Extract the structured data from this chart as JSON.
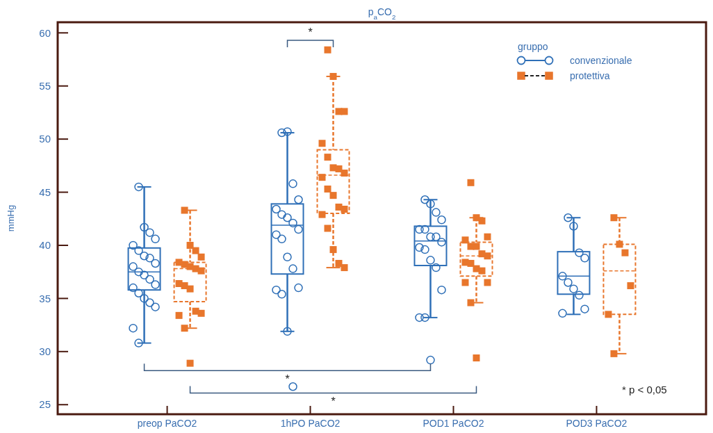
{
  "chart_data": {
    "type": "box",
    "title": "p$_{a}$CO$_{2}$",
    "ylabel": "mmHg",
    "legend_title": "gruppo",
    "legend": "top right",
    "categories": [
      "preop PaCO2",
      "1hPO PaCO2",
      "POD1 PaCO2",
      "POD3 PaCO2"
    ],
    "ylim": [
      24.1,
      61
    ],
    "yticks": [
      25,
      30,
      35,
      40,
      45,
      50,
      55,
      60
    ],
    "annotations": [
      "*",
      "*",
      "*",
      "* p < 0,05"
    ],
    "series": [
      {
        "name": "convenzionale",
        "color": "#2e6fb7",
        "marker": "circle",
        "line_style": "solid",
        "boxes": [
          {
            "low": 30.8,
            "q1": 35.8,
            "median": 37.5,
            "q3": 39.75,
            "high": 45.5
          },
          {
            "low": 31.9,
            "q1": 37.3,
            "median": 41.9,
            "q3": 43.9,
            "high": 50.6
          },
          {
            "low": 33.2,
            "q1": 38.1,
            "median": 40.4,
            "q3": 41.8,
            "high": 44.3
          },
          {
            "low": 33.5,
            "q1": 35.4,
            "median": 37.1,
            "q3": 39.4,
            "high": 42.6
          }
        ]
      },
      {
        "name": "protettiva",
        "color": "#e8762c",
        "marker": "square",
        "line_style": "dashed",
        "boxes": [
          {
            "low": 32.2,
            "q1": 34.7,
            "median": 37.8,
            "q3": 38.4,
            "high": 43.3
          },
          {
            "low": 37.9,
            "q1": 43.0,
            "median": 46.6,
            "q3": 49.0,
            "high": 55.9
          },
          {
            "low": 34.6,
            "q1": 37.1,
            "median": 39.0,
            "q3": 40.3,
            "high": 42.6
          },
          {
            "low": 29.8,
            "q1": 33.5,
            "median": 37.6,
            "q3": 40.1,
            "high": 42.6
          }
        ]
      },
      {
        "type": "scatter",
        "color": "#2e6fb7",
        "marker": "circle",
        "x": [
          "preop PaCO2",
          "preop PaCO2",
          "preop PaCO2",
          "preop PaCO2",
          "preop PaCO2",
          "preop PaCO2",
          "preop PaCO2",
          "preop PaCO2",
          "preop PaCO2",
          "preop PaCO2",
          "preop PaCO2",
          "preop PaCO2",
          "preop PaCO2",
          "preop PaCO2",
          "preop PaCO2",
          "preop PaCO2",
          "preop PaCO2",
          "preop PaCO2",
          "preop PaCO2",
          "preop PaCO2",
          "preop PaCO2",
          "1hPO PaCO2",
          "1hPO PaCO2",
          "1hPO PaCO2",
          "1hPO PaCO2",
          "1hPO PaCO2",
          "1hPO PaCO2",
          "1hPO PaCO2",
          "1hPO PaCO2",
          "1hPO PaCO2",
          "1hPO PaCO2",
          "1hPO PaCO2",
          "1hPO PaCO2",
          "1hPO PaCO2",
          "1hPO PaCO2",
          "1hPO PaCO2",
          "1hPO PaCO2",
          "1hPO PaCO2",
          "1hPO PaCO2",
          "POD1 PaCO2",
          "POD1 PaCO2",
          "POD1 PaCO2",
          "POD1 PaCO2",
          "POD1 PaCO2",
          "POD1 PaCO2",
          "POD1 PaCO2",
          "POD1 PaCO2",
          "POD1 PaCO2",
          "POD1 PaCO2",
          "POD1 PaCO2",
          "POD1 PaCO2",
          "POD1 PaCO2",
          "POD1 PaCO2",
          "POD1 PaCO2",
          "POD1 PaCO2",
          "POD1 PaCO2",
          "POD3 PaCO2",
          "POD3 PaCO2",
          "POD3 PaCO2",
          "POD3 PaCO2",
          "POD3 PaCO2",
          "POD3 PaCO2",
          "POD3 PaCO2",
          "POD3 PaCO2",
          "POD3 PaCO2",
          "POD3 PaCO2"
        ],
        "values": [
          45.5,
          41.7,
          41.2,
          40.6,
          40.0,
          39.5,
          39.0,
          38.8,
          38.3,
          38.0,
          37.5,
          37.2,
          36.8,
          36.3,
          36.0,
          35.5,
          35.0,
          34.6,
          34.2,
          32.2,
          30.8,
          50.6,
          50.7,
          45.8,
          44.3,
          43.4,
          42.9,
          42.6,
          42.1,
          41.5,
          41.0,
          40.6,
          38.9,
          37.8,
          36.0,
          35.8,
          35.4,
          31.9,
          26.7,
          44.3,
          43.9,
          43.1,
          42.4,
          41.5,
          41.5,
          40.8,
          40.8,
          40.3,
          39.8,
          39.6,
          38.6,
          37.9,
          35.8,
          33.2,
          33.2,
          29.2,
          42.6,
          41.8,
          39.3,
          38.8,
          37.1,
          36.5,
          35.9,
          35.3,
          34.0,
          33.6
        ]
      },
      {
        "type": "scatter",
        "color": "#e8762c",
        "marker": "square",
        "x": [
          "preop PaCO2",
          "preop PaCO2",
          "preop PaCO2",
          "preop PaCO2",
          "preop PaCO2",
          "preop PaCO2",
          "preop PaCO2",
          "preop PaCO2",
          "preop PaCO2",
          "preop PaCO2",
          "preop PaCO2",
          "preop PaCO2",
          "preop PaCO2",
          "preop PaCO2",
          "preop PaCO2",
          "preop PaCO2",
          "preop PaCO2",
          "1hPO PaCO2",
          "1hPO PaCO2",
          "1hPO PaCO2",
          "1hPO PaCO2",
          "1hPO PaCO2",
          "1hPO PaCO2",
          "1hPO PaCO2",
          "1hPO PaCO2",
          "1hPO PaCO2",
          "1hPO PaCO2",
          "1hPO PaCO2",
          "1hPO PaCO2",
          "1hPO PaCO2",
          "1hPO PaCO2",
          "1hPO PaCO2",
          "1hPO PaCO2",
          "1hPO PaCO2",
          "1hPO PaCO2",
          "1hPO PaCO2",
          "POD1 PaCO2",
          "POD1 PaCO2",
          "POD1 PaCO2",
          "POD1 PaCO2",
          "POD1 PaCO2",
          "POD1 PaCO2",
          "POD1 PaCO2",
          "POD1 PaCO2",
          "POD1 PaCO2",
          "POD1 PaCO2",
          "POD1 PaCO2",
          "POD1 PaCO2",
          "POD1 PaCO2",
          "POD1 PaCO2",
          "POD1 PaCO2",
          "POD1 PaCO2",
          "POD1 PaCO2",
          "POD3 PaCO2",
          "POD3 PaCO2",
          "POD3 PaCO2",
          "POD3 PaCO2",
          "POD3 PaCO2",
          "POD3 PaCO2"
        ],
        "values": [
          43.3,
          40.0,
          39.5,
          38.9,
          38.4,
          38.2,
          38.0,
          37.8,
          37.6,
          36.4,
          36.2,
          35.9,
          33.8,
          33.6,
          33.4,
          32.2,
          28.9,
          58.4,
          55.9,
          52.6,
          52.6,
          49.6,
          48.3,
          47.3,
          47.2,
          46.8,
          46.4,
          45.3,
          44.7,
          43.6,
          43.4,
          42.9,
          41.6,
          39.6,
          38.3,
          37.9,
          45.9,
          42.6,
          42.3,
          40.8,
          40.5,
          39.9,
          39.9,
          39.2,
          39.0,
          38.4,
          38.3,
          37.8,
          37.6,
          36.5,
          36.5,
          34.6,
          29.4,
          42.6,
          40.1,
          39.3,
          36.2,
          33.5,
          29.8
        ]
      }
    ]
  }
}
